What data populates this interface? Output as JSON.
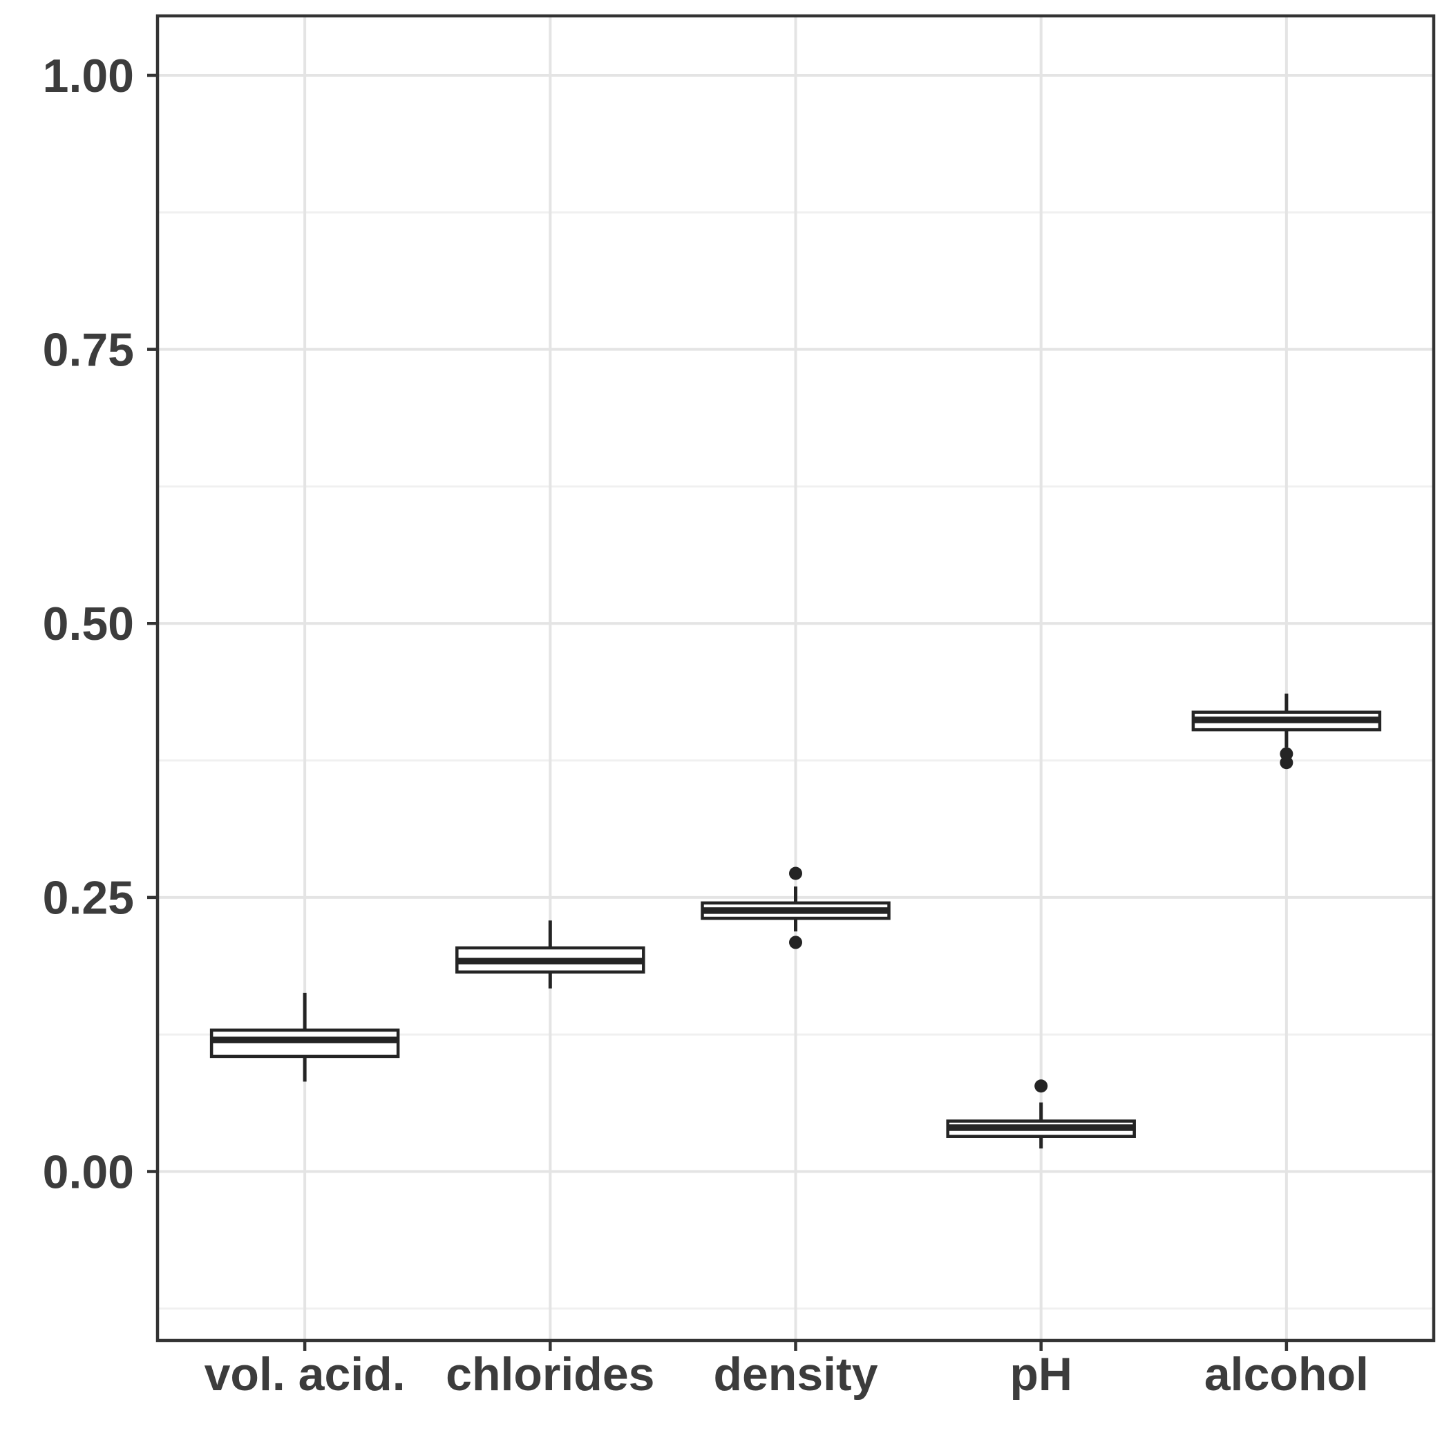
{
  "chart_data": {
    "type": "boxplot",
    "title": "",
    "xlabel": "",
    "ylabel": "",
    "categories": [
      "vol. acid.",
      "chlorides",
      "density",
      "pH",
      "alcohol"
    ],
    "series": [
      {
        "category": "vol. acid.",
        "whisker_low": 0.082,
        "q1": 0.105,
        "median": 0.12,
        "q3": 0.129,
        "whisker_high": 0.163,
        "outliers": []
      },
      {
        "category": "chlorides",
        "whisker_low": 0.167,
        "q1": 0.182,
        "median": 0.192,
        "q3": 0.204,
        "whisker_high": 0.229,
        "outliers": []
      },
      {
        "category": "density",
        "whisker_low": 0.219,
        "q1": 0.231,
        "median": 0.238,
        "q3": 0.245,
        "whisker_high": 0.26,
        "outliers": [
          0.272,
          0.209
        ]
      },
      {
        "category": "pH",
        "whisker_low": 0.021,
        "q1": 0.032,
        "median": 0.04,
        "q3": 0.046,
        "whisker_high": 0.063,
        "outliers": [
          0.078
        ]
      },
      {
        "category": "alcohol",
        "whisker_low": 0.387,
        "q1": 0.403,
        "median": 0.412,
        "q3": 0.419,
        "whisker_high": 0.436,
        "outliers": [
          0.381,
          0.373
        ]
      }
    ],
    "y_axis": {
      "tick_labels": [
        "1.00",
        "0.75",
        "0.50",
        "0.25",
        "0.00"
      ],
      "tick_values": [
        1.0,
        0.75,
        0.5,
        0.25,
        0.0
      ],
      "minor_values": [
        0.875,
        0.625,
        0.375,
        0.125,
        -0.125
      ],
      "range_shown": [
        -0.155,
        1.055
      ]
    },
    "grid": "horizontal major+minor, vertical major at categories",
    "legend": "none",
    "colors": {
      "background": "#ffffff",
      "panel_background": "#ffffff",
      "panel_border": "#333333",
      "grid_major": "#e4e4e4",
      "grid_minor": "#f0f0f0",
      "tick": "#333333",
      "label_text": "#3c3c3c",
      "box_stroke": "#242424",
      "box_fill": "#ffffff",
      "outlier": "#242424"
    }
  }
}
